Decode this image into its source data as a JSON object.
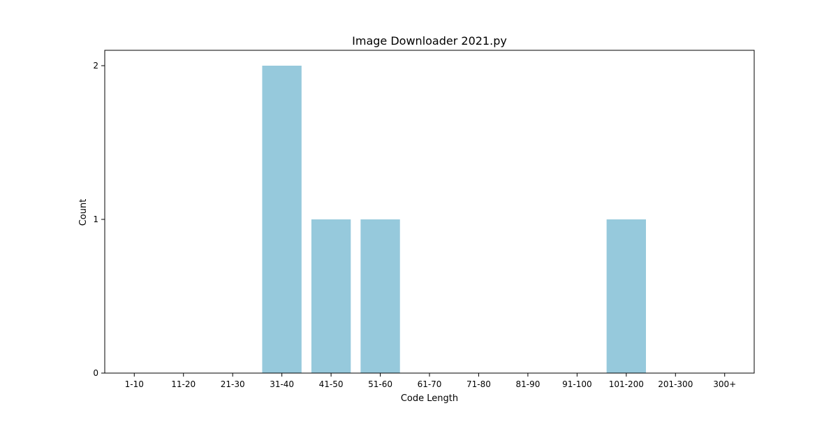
{
  "chart_data": {
    "type": "bar",
    "title": "Image Downloader 2021.py",
    "xlabel": "Code Length",
    "ylabel": "Count",
    "categories": [
      "1-10",
      "11-20",
      "21-30",
      "31-40",
      "41-50",
      "51-60",
      "61-70",
      "71-80",
      "81-90",
      "91-100",
      "101-200",
      "201-300",
      "300+"
    ],
    "values": [
      0,
      0,
      0,
      2,
      1,
      1,
      0,
      0,
      0,
      0,
      1,
      0,
      0
    ],
    "yticks": [
      0,
      1,
      2
    ],
    "ylim": [
      0,
      2.1
    ],
    "grid": false,
    "bar_color": "#96c9dc"
  }
}
